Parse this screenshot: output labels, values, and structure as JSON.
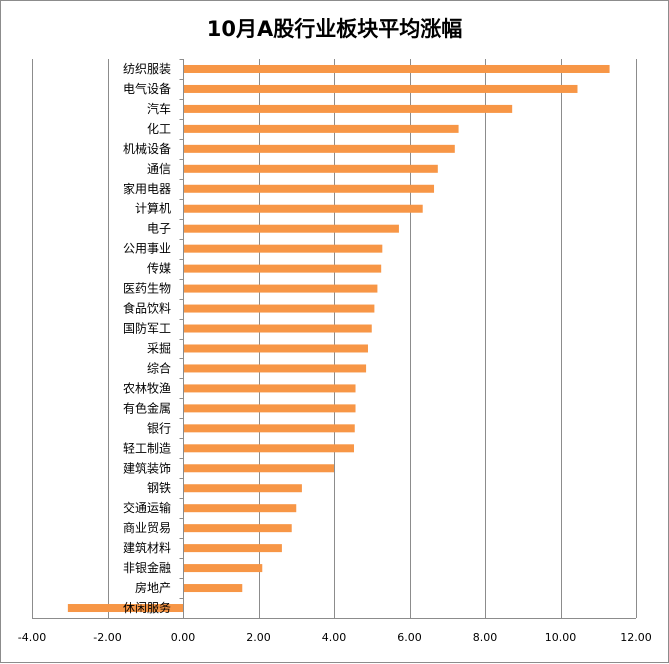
{
  "chart_data": {
    "type": "bar",
    "orientation": "horizontal",
    "title": "10月A股行业板块平均涨幅",
    "xlabel": "",
    "ylabel": "",
    "xlim": [
      -4,
      12
    ],
    "xticks": [
      -4,
      -2,
      0,
      2,
      4,
      6,
      8,
      10,
      12
    ],
    "xtick_labels": [
      "-4.00",
      "-2.00",
      "0.00",
      "2.00",
      "4.00",
      "6.00",
      "8.00",
      "10.00",
      "12.00"
    ],
    "grid": "vertical",
    "legend": "none",
    "bar_color": "#F79646",
    "categories": [
      "纺织服装",
      "电气设备",
      "汽车",
      "化工",
      "机械设备",
      "通信",
      "家用电器",
      "计算机",
      "电子",
      "公用事业",
      "传媒",
      "医药生物",
      "食品饮料",
      "国防军工",
      "采掘",
      "综合",
      "农林牧渔",
      "有色金属",
      "银行",
      "轻工制造",
      "建筑装饰",
      "钢铁",
      "交通运输",
      "商业贸易",
      "建筑材料",
      "非银金融",
      "房地产",
      "休闲服务"
    ],
    "values": [
      11.3,
      10.45,
      8.72,
      7.3,
      7.2,
      6.75,
      6.65,
      6.35,
      5.72,
      5.28,
      5.25,
      5.15,
      5.07,
      5.0,
      4.9,
      4.85,
      4.57,
      4.57,
      4.55,
      4.53,
      4.0,
      3.15,
      3.0,
      2.88,
      2.62,
      2.1,
      1.57,
      -3.05
    ]
  }
}
